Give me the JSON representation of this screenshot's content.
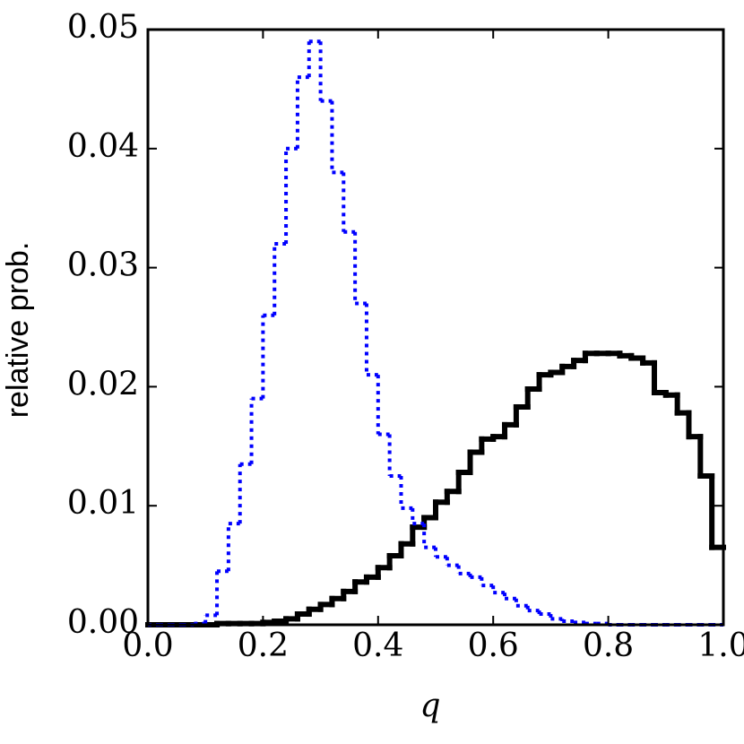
{
  "chart_data": {
    "type": "histogram",
    "xlabel": "q",
    "ylabel": "relative prob.",
    "bins": [
      0,
      0.02,
      0.04,
      0.06,
      0.08,
      0.1,
      0.12,
      0.14,
      0.16,
      0.18,
      0.2,
      0.22,
      0.24,
      0.26,
      0.28,
      0.3,
      0.32,
      0.34,
      0.36,
      0.38,
      0.4,
      0.42,
      0.44,
      0.46,
      0.48,
      0.5,
      0.52,
      0.54,
      0.56,
      0.58,
      0.6,
      0.62,
      0.64,
      0.66,
      0.68,
      0.7,
      0.72,
      0.74,
      0.76,
      0.78,
      0.8,
      0.82,
      0.84,
      0.86,
      0.88,
      0.9,
      0.92,
      0.94,
      0.96,
      0.98,
      1
    ],
    "series": [
      {
        "color": "#000000",
        "style": "solid",
        "values": [
          0,
          0,
          0,
          0,
          0,
          0,
          0.0001,
          0.0001,
          0.0001,
          0.0001,
          0.0002,
          0.0003,
          0.0005,
          0.0009,
          0.0013,
          0.0017,
          0.0022,
          0.0028,
          0.0036,
          0.004,
          0.0048,
          0.0058,
          0.0068,
          0.0082,
          0.009,
          0.0103,
          0.0112,
          0.0128,
          0.0145,
          0.0156,
          0.0158,
          0.0168,
          0.0183,
          0.0198,
          0.021,
          0.0212,
          0.0217,
          0.0222,
          0.0228,
          0.0228,
          0.0228,
          0.0226,
          0.0224,
          0.022,
          0.0195,
          0.0193,
          0.0178,
          0.0158,
          0.0125,
          0.0065
        ]
      },
      {
        "color": "#0000ff",
        "style": "dotted",
        "values": [
          0,
          0,
          0,
          0,
          0.0001,
          0.0008,
          0.0045,
          0.0085,
          0.0135,
          0.019,
          0.026,
          0.032,
          0.04,
          0.046,
          0.049,
          0.044,
          0.038,
          0.033,
          0.027,
          0.021,
          0.016,
          0.0125,
          0.0098,
          0.0085,
          0.0065,
          0.0057,
          0.005,
          0.0043,
          0.004,
          0.0033,
          0.0027,
          0.0022,
          0.0016,
          0.0012,
          0.0009,
          0.0005,
          0.0003,
          0.0002,
          0.0001,
          0.0001,
          0,
          0,
          0,
          0,
          0,
          0,
          0,
          0,
          0,
          0
        ]
      }
    ],
    "xlim": [
      0,
      1
    ],
    "ylim": [
      0,
      0.05
    ],
    "xticks": [
      {
        "value": 0,
        "label": "0.0"
      },
      0.2,
      0.4,
      0.6,
      0.8,
      {
        "value": 1,
        "label": "1.0"
      }
    ],
    "yticks": [
      {
        "value": 0,
        "label": "0.00"
      },
      0.01,
      0.02,
      0.03,
      0.04,
      0.05
    ]
  }
}
